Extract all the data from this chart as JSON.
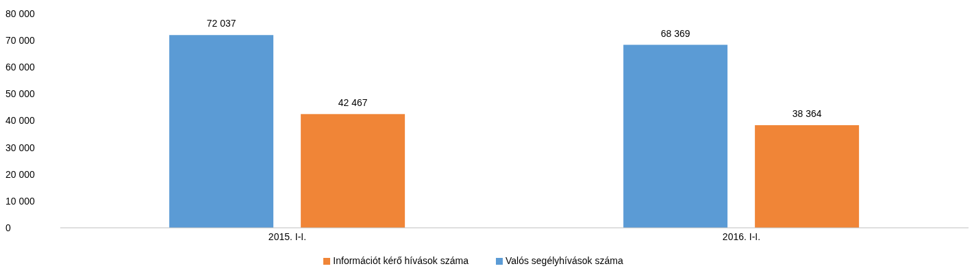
{
  "chart_data": {
    "type": "bar",
    "categories": [
      "2015. I-I.",
      "2016. I-I."
    ],
    "series": [
      {
        "name": "Valós segélyhívások száma",
        "color": "#5b9bd5",
        "values": [
          72037,
          68369
        ],
        "value_labels": [
          "72 037",
          "68 369"
        ]
      },
      {
        "name": "Információt kérő hívások száma",
        "color": "#f08537",
        "values": [
          42467,
          38364
        ],
        "value_labels": [
          "42 467",
          "38 364"
        ]
      }
    ],
    "ylim": [
      0,
      80000
    ],
    "yticks": [
      0,
      {
        "value": 10000,
        "label": "10 000"
      },
      {
        "value": 20000,
        "label": "20 000"
      },
      {
        "value": 30000,
        "label": "30 000"
      },
      {
        "value": 40000,
        "label": "40 000"
      },
      {
        "value": 50000,
        "label": "50 000"
      },
      {
        "value": 60000,
        "label": "60 000"
      },
      {
        "value": 70000,
        "label": "70 000"
      },
      {
        "value": 80000,
        "label": "80 000"
      }
    ],
    "grid": false,
    "legend": "bottom"
  }
}
